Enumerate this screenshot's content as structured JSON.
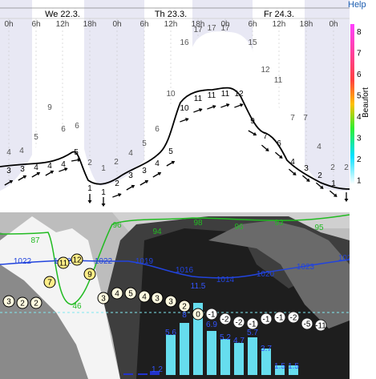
{
  "help_label": "Help",
  "days": [
    "We 22.3.",
    "Th 23.3.",
    "Fr 24.3."
  ],
  "hours": [
    "0h",
    "6h",
    "12h",
    "18h",
    "0h",
    "6h",
    "12h",
    "18h",
    "0h",
    "6h",
    "12h",
    "18h",
    "0h"
  ],
  "beaufort": {
    "title": "Beaufort",
    "ticks": [
      "8",
      "7",
      "6",
      "5",
      "4",
      "3",
      "2",
      "1"
    ]
  },
  "colors": {
    "wind_gust_top": "#ff40ff",
    "wind_mean_low": "#00e0ff",
    "temp_line": "#22bb22",
    "pressure_line": "#2244dd",
    "precip_bar": "#66ddee",
    "night_band": "#e8e8f4"
  },
  "gust_labels": [
    "4",
    "4",
    "5",
    "9",
    "6",
    "6",
    "2",
    "1",
    "2",
    "4",
    "5",
    "6",
    "10",
    "16",
    "17",
    "17",
    "17",
    "15",
    "12",
    "11",
    "7",
    "7",
    "4",
    "2",
    "2"
  ],
  "wind_labels": [
    "3",
    "3",
    "4",
    "4",
    "4",
    "5",
    "1",
    "1",
    "2",
    "3",
    "3",
    "4",
    "5",
    "10",
    "11",
    "11",
    "11",
    "12",
    "9",
    "7",
    "6",
    "4",
    "3",
    "2",
    "1"
  ],
  "temp_labels": [
    "87",
    "46",
    "96",
    "94",
    "98",
    "96",
    "93",
    "95"
  ],
  "pressure_labels": [
    "1022",
    "1022",
    "1022",
    "1019",
    "1016",
    "1014",
    "1020",
    "1023"
  ],
  "cloud_values": [
    "3",
    "2",
    "2",
    "7",
    "11",
    "12",
    "9",
    "3",
    "4",
    "5",
    "4",
    "3",
    "3",
    "2",
    "0",
    "-1",
    "-2",
    "-2",
    "-1",
    "-1",
    "-1",
    "-2",
    "-5",
    "-11"
  ],
  "precip_values": [
    "1.2",
    "5.6",
    "8",
    "11.5",
    "6.9",
    "5.2",
    "4.7",
    "5.7",
    "3.7",
    "1.5",
    "1.5"
  ]
}
